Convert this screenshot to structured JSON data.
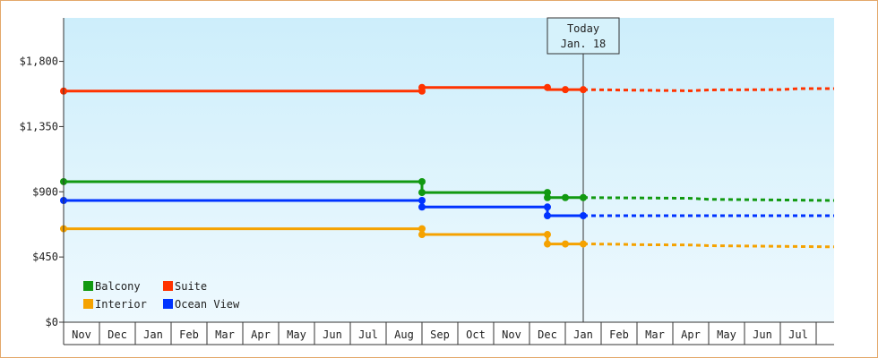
{
  "chart_data": {
    "type": "line",
    "title": "",
    "xlabel": "",
    "ylabel": "",
    "ylim": [
      0,
      2100
    ],
    "yticks": [
      {
        "value": 0,
        "label": "$0"
      },
      {
        "value": 450,
        "label": "$450"
      },
      {
        "value": 900,
        "label": "$900"
      },
      {
        "value": 1350,
        "label": "$1,350"
      },
      {
        "value": 1800,
        "label": "$1,800"
      }
    ],
    "month_labels": [
      "Nov",
      "Dec",
      "Jan",
      "Feb",
      "Mar",
      "Apr",
      "May",
      "Jun",
      "Jul",
      "Aug",
      "Sep",
      "Oct",
      "Nov",
      "Dec",
      "Jan",
      "Feb",
      "Mar",
      "Apr",
      "May",
      "Jun",
      "Jul"
    ],
    "xlim_months": [
      0,
      21.5
    ],
    "today": {
      "label_line1": "Today",
      "label_line2": "Jan. 18",
      "x": 14.5
    },
    "legend_position": "bottom-left",
    "series": [
      {
        "name": "Balcony",
        "color": "#119911",
        "actual": [
          [
            0,
            970
          ],
          [
            10,
            970
          ],
          [
            10,
            895
          ],
          [
            13.5,
            895
          ],
          [
            13.5,
            860
          ],
          [
            14,
            860
          ],
          [
            14.5,
            860
          ]
        ],
        "markers": [
          [
            0,
            970
          ],
          [
            10,
            970
          ],
          [
            10,
            895
          ],
          [
            13.5,
            895
          ],
          [
            13.5,
            860
          ],
          [
            14,
            860
          ],
          [
            14.5,
            860
          ]
        ],
        "forecast": [
          [
            14.5,
            860
          ],
          [
            17.5,
            855
          ],
          [
            18,
            848
          ],
          [
            21.5,
            840
          ]
        ]
      },
      {
        "name": "Suite",
        "color": "#ff3300",
        "actual": [
          [
            0,
            1595
          ],
          [
            10,
            1595
          ],
          [
            10,
            1620
          ],
          [
            13.5,
            1620
          ],
          [
            13.5,
            1605
          ],
          [
            14.5,
            1605
          ]
        ],
        "markers": [
          [
            0,
            1595
          ],
          [
            10,
            1595
          ],
          [
            10,
            1620
          ],
          [
            13.5,
            1620
          ],
          [
            14,
            1605
          ],
          [
            14.5,
            1605
          ]
        ],
        "forecast": [
          [
            14.5,
            1605
          ],
          [
            17.5,
            1597
          ],
          [
            18,
            1603
          ],
          [
            20,
            1605
          ],
          [
            20.5,
            1612
          ],
          [
            21.5,
            1612
          ]
        ]
      },
      {
        "name": "Interior",
        "color": "#f5a200",
        "actual": [
          [
            0,
            645
          ],
          [
            10,
            645
          ],
          [
            10,
            605
          ],
          [
            13.5,
            605
          ],
          [
            13.5,
            540
          ],
          [
            14.5,
            540
          ]
        ],
        "markers": [
          [
            0,
            645
          ],
          [
            10,
            645
          ],
          [
            10,
            605
          ],
          [
            13.5,
            605
          ],
          [
            13.5,
            540
          ],
          [
            14,
            540
          ],
          [
            14.5,
            540
          ]
        ],
        "forecast": [
          [
            14.5,
            540
          ],
          [
            15.5,
            538
          ],
          [
            16,
            535
          ],
          [
            17.5,
            533
          ],
          [
            18,
            528
          ],
          [
            21.5,
            520
          ]
        ]
      },
      {
        "name": "Ocean View",
        "color": "#0033ff",
        "actual": [
          [
            0,
            840
          ],
          [
            10,
            840
          ],
          [
            10,
            795
          ],
          [
            13.5,
            795
          ],
          [
            13.5,
            735
          ],
          [
            14.5,
            735
          ]
        ],
        "markers": [
          [
            0,
            840
          ],
          [
            10,
            840
          ],
          [
            10,
            795
          ],
          [
            13.5,
            795
          ],
          [
            13.5,
            735
          ],
          [
            14.5,
            735
          ]
        ],
        "forecast": [
          [
            14.5,
            735
          ],
          [
            21.5,
            735
          ]
        ]
      }
    ]
  }
}
